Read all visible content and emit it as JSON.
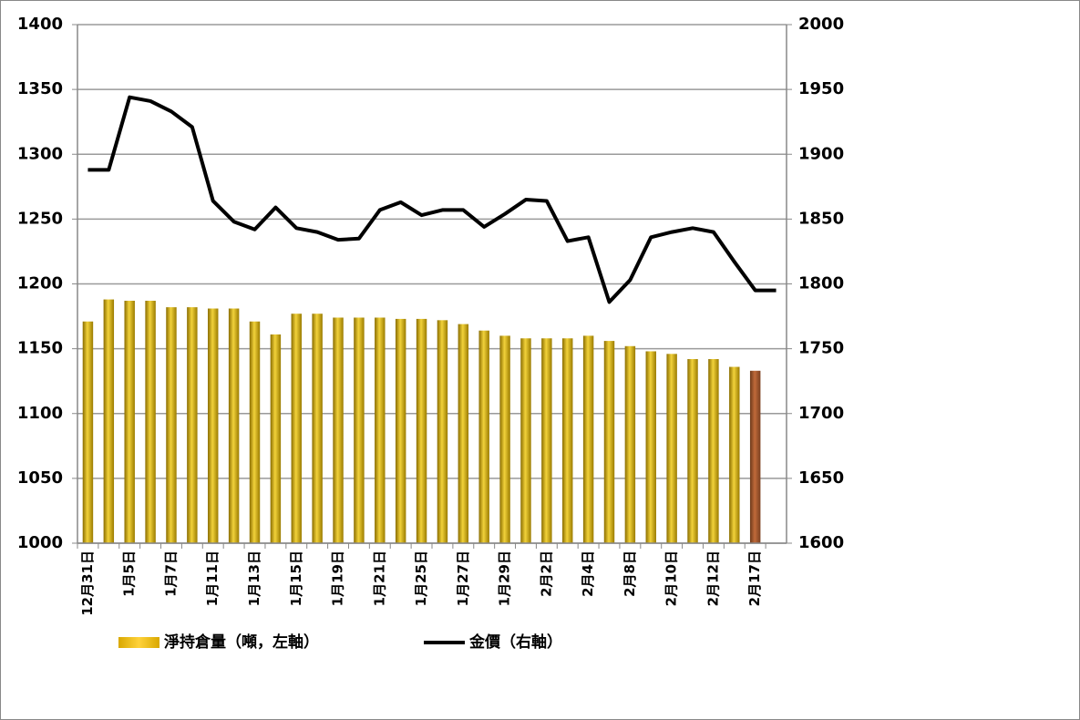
{
  "chart_data": {
    "type": "bar_line",
    "categories": [
      "12月31日",
      null,
      "1月5日",
      null,
      "1月7日",
      null,
      "1月11日",
      null,
      "1月13日",
      null,
      "1月15日",
      null,
      "1月19日",
      null,
      "1月21日",
      null,
      "1月25日",
      null,
      "1月27日",
      null,
      "1月29日",
      null,
      "2月2日",
      null,
      "2月4日",
      null,
      "2月8日",
      null,
      "2月10日",
      null,
      "2月12日",
      null,
      "2月17日",
      null
    ],
    "series": [
      {
        "name": "淨持倉量（噸，左軸）",
        "type": "bar",
        "color": "#c9a400",
        "highlight_color": "#a0522d",
        "values": [
          1171,
          1188,
          1187,
          1187,
          1182,
          1182,
          1181,
          1181,
          1171,
          1161,
          1177,
          1177,
          1174,
          1174,
          1174,
          1173,
          1173,
          1172,
          1169,
          1164,
          1160,
          1158,
          1158,
          1158,
          1160,
          1156,
          1152,
          1148,
          1146,
          1142,
          1142,
          1136,
          1133,
          null
        ]
      },
      {
        "name": "金價（右軸）",
        "type": "line",
        "axis": "y2",
        "color": "#000000",
        "values": [
          1888,
          1888,
          1944,
          1941,
          1933,
          1921,
          1864,
          1848,
          1842,
          1859,
          1843,
          1840,
          1834,
          1835,
          1857,
          1863,
          1853,
          1857,
          1857,
          1844,
          1854,
          1865,
          1864,
          1833,
          1836,
          1786,
          1803,
          1836,
          1840,
          1843,
          1840,
          1817,
          1795,
          1795
        ]
      }
    ],
    "ylim": [
      1000,
      1400
    ],
    "yticks": [
      1000,
      1050,
      1100,
      1150,
      1200,
      1250,
      1300,
      1350,
      1400
    ],
    "y2lim": [
      1600,
      2000
    ],
    "y2ticks": [
      1600,
      1650,
      1700,
      1750,
      1800,
      1850,
      1900,
      1950,
      2000
    ],
    "grid": true,
    "legend": "bottom"
  }
}
